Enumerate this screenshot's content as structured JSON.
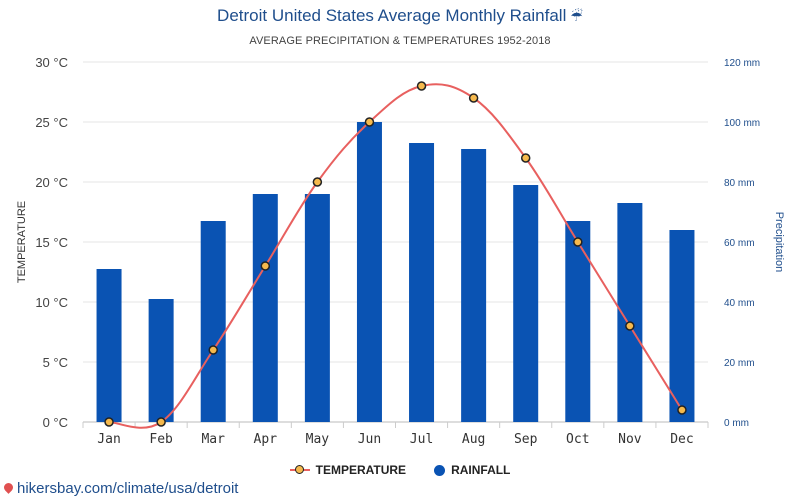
{
  "header": {
    "title": "Detroit United States Average Monthly Rainfall",
    "title_icon": "umbrella-rain-icon",
    "subtitle": "AVERAGE PRECIPITATION & TEMPERATURES 1952-2018"
  },
  "chart_data": {
    "type": "bar+line",
    "categories": [
      "Jan",
      "Feb",
      "Mar",
      "Apr",
      "May",
      "Jun",
      "Jul",
      "Aug",
      "Sep",
      "Oct",
      "Nov",
      "Dec"
    ],
    "series": [
      {
        "name": "RAINFALL",
        "type": "bar",
        "axis": "right",
        "unit": "mm",
        "color": "#0a53b3",
        "values": [
          51,
          41,
          67,
          76,
          76,
          100,
          93,
          91,
          79,
          67,
          73,
          64
        ]
      },
      {
        "name": "TEMPERATURE",
        "type": "line",
        "axis": "left",
        "unit": "°C",
        "color": "#e8605f",
        "marker_color": "#f5b94d",
        "values": [
          0,
          0,
          6,
          13,
          20,
          25,
          28,
          27,
          22,
          15,
          8,
          1
        ]
      }
    ],
    "y_left": {
      "label": "TEMPERATURE",
      "range": [
        0,
        30
      ],
      "ticks": [
        "0 °C",
        "5 °C",
        "10 °C",
        "15 °C",
        "20 °C",
        "25 °C",
        "30 °C"
      ]
    },
    "y_right": {
      "label": "Precipitation",
      "range": [
        0,
        120
      ],
      "ticks": [
        "0 mm",
        "20 mm",
        "40 mm",
        "60 mm",
        "80 mm",
        "100 mm",
        "120 mm"
      ]
    },
    "grid": true,
    "legend_position": "bottom-center"
  },
  "legend": {
    "temperature": "TEMPERATURE",
    "rainfall": "RAINFALL"
  },
  "source": {
    "text": "hikersbay.com/climate/usa/detroit"
  }
}
